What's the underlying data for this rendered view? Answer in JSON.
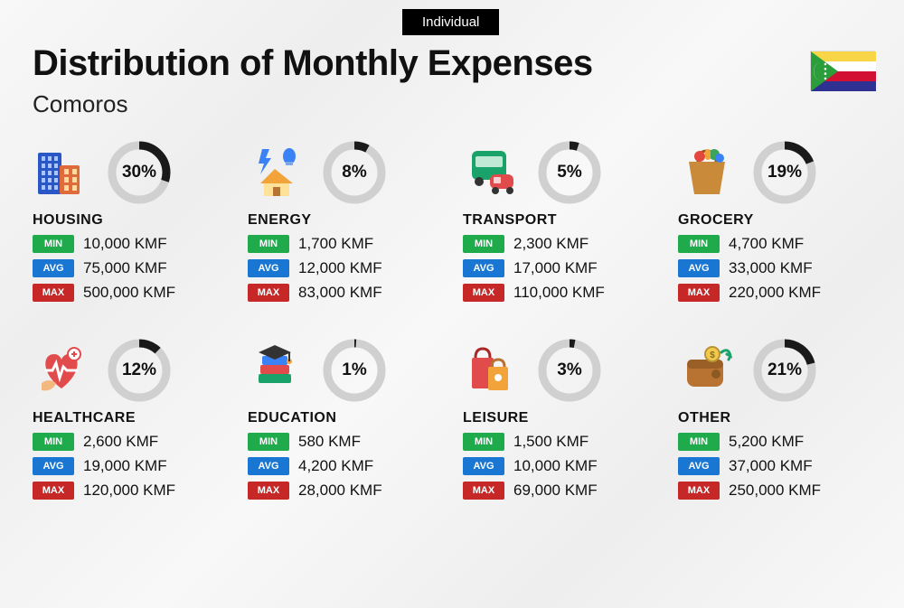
{
  "header": {
    "tab": "Individual",
    "title": "Distribution of Monthly Expenses",
    "subtitle": "Comoros"
  },
  "flag": {
    "stripes": [
      "#f8d648",
      "#ffffff",
      "#d21034",
      "#2e3192"
    ],
    "triangle": "#2b9d3a",
    "symbol_color": "#ffffff"
  },
  "labels": {
    "min": "MIN",
    "avg": "AVG",
    "max": "MAX",
    "currency": "KMF"
  },
  "badge_colors": {
    "min": "#1fab4c",
    "avg": "#1976d2",
    "max": "#c62828"
  },
  "donut": {
    "track_color": "#d0d0d0",
    "value_color": "#1a1a1a",
    "stroke_width": 9,
    "radius": 30
  },
  "categories": [
    {
      "key": "housing",
      "name": "HOUSING",
      "percent": 30,
      "min": "10,000",
      "avg": "75,000",
      "max": "500,000",
      "icon": "housing"
    },
    {
      "key": "energy",
      "name": "ENERGY",
      "percent": 8,
      "min": "1,700",
      "avg": "12,000",
      "max": "83,000",
      "icon": "energy"
    },
    {
      "key": "transport",
      "name": "TRANSPORT",
      "percent": 5,
      "min": "2,300",
      "avg": "17,000",
      "max": "110,000",
      "icon": "transport"
    },
    {
      "key": "grocery",
      "name": "GROCERY",
      "percent": 19,
      "min": "4,700",
      "avg": "33,000",
      "max": "220,000",
      "icon": "grocery"
    },
    {
      "key": "healthcare",
      "name": "HEALTHCARE",
      "percent": 12,
      "min": "2,600",
      "avg": "19,000",
      "max": "120,000",
      "icon": "healthcare"
    },
    {
      "key": "education",
      "name": "EDUCATION",
      "percent": 1,
      "min": "580",
      "avg": "4,200",
      "max": "28,000",
      "icon": "education"
    },
    {
      "key": "leisure",
      "name": "LEISURE",
      "percent": 3,
      "min": "1,500",
      "avg": "10,000",
      "max": "69,000",
      "icon": "leisure"
    },
    {
      "key": "other",
      "name": "OTHER",
      "percent": 21,
      "min": "5,200",
      "avg": "37,000",
      "max": "250,000",
      "icon": "other"
    }
  ]
}
